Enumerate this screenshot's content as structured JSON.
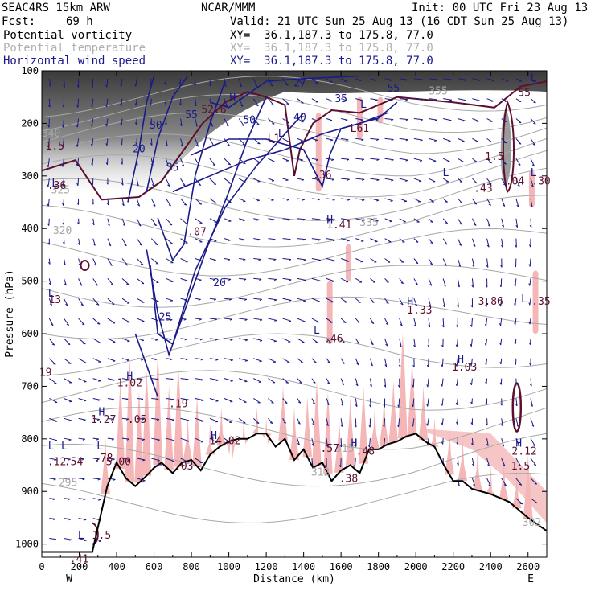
{
  "header": {
    "model": "SEAC4RS 15km ARW",
    "center": "NCAR/MMM",
    "init": "Init: 00 UTC Fri 23 Aug 13",
    "fcst_label": "Fcst:",
    "fcst_value": "69 h",
    "valid": "Valid: 21 UTC Sun 25 Aug 13 (16 CDT Sun 25 Aug 13)",
    "fields": [
      {
        "name": "Potential vorticity",
        "xy": "XY=  36.1,187.3 to 175.8, 77.0",
        "color": "#000000"
      },
      {
        "name": "Potential temperature",
        "xy": "XY=  36.1,187.3 to 175.8, 77.0",
        "color": "#b0b0b0"
      },
      {
        "name": "Horizontal wind speed",
        "xy": "XY=  36.1,187.3 to 175.8, 77.0",
        "color": "#1a1a8c"
      }
    ]
  },
  "chart_data": {
    "type": "cross-section",
    "xlabel": "Distance (km)",
    "ylabel": "Pressure (hPa)",
    "xlim": [
      0,
      2700
    ],
    "ylim": [
      1025,
      100
    ],
    "x_ticks": [
      0,
      200,
      400,
      600,
      800,
      1000,
      1200,
      1400,
      1600,
      1800,
      2000,
      2200,
      2400,
      2600
    ],
    "y_ticks": [
      100,
      200,
      300,
      400,
      500,
      600,
      700,
      800,
      900,
      1000
    ],
    "left_end": "W",
    "right_end": "E",
    "colors": {
      "pv_shade": "#f4b6b6",
      "pv_contour": "#5c0f2e",
      "theta": "#a8a8a8",
      "wind": "#1a1a8c",
      "terrain": "#000000"
    },
    "terrain": [
      [
        0,
        1015
      ],
      [
        270,
        1015
      ],
      [
        350,
        890
      ],
      [
        400,
        845
      ],
      [
        450,
        875
      ],
      [
        500,
        890
      ],
      [
        560,
        870
      ],
      [
        600,
        855
      ],
      [
        640,
        845
      ],
      [
        700,
        865
      ],
      [
        750,
        845
      ],
      [
        800,
        840
      ],
      [
        850,
        860
      ],
      [
        900,
        830
      ],
      [
        950,
        815
      ],
      [
        1000,
        805
      ],
      [
        1050,
        800
      ],
      [
        1100,
        800
      ],
      [
        1150,
        790
      ],
      [
        1200,
        790
      ],
      [
        1250,
        815
      ],
      [
        1300,
        800
      ],
      [
        1350,
        840
      ],
      [
        1400,
        820
      ],
      [
        1450,
        855
      ],
      [
        1500,
        845
      ],
      [
        1550,
        880
      ],
      [
        1600,
        860
      ],
      [
        1650,
        850
      ],
      [
        1700,
        865
      ],
      [
        1750,
        820
      ],
      [
        1800,
        820
      ],
      [
        1850,
        810
      ],
      [
        1900,
        805
      ],
      [
        1950,
        795
      ],
      [
        2000,
        790
      ],
      [
        2050,
        805
      ],
      [
        2100,
        815
      ],
      [
        2150,
        850
      ],
      [
        2200,
        880
      ],
      [
        2250,
        880
      ],
      [
        2300,
        895
      ],
      [
        2400,
        905
      ],
      [
        2500,
        920
      ],
      [
        2600,
        950
      ],
      [
        2700,
        975
      ]
    ],
    "wind_speed_labels": [
      {
        "x": 520,
        "p": 255,
        "text": "20"
      },
      {
        "x": 610,
        "p": 210,
        "text": "30"
      },
      {
        "x": 700,
        "p": 290,
        "text": "35"
      },
      {
        "x": 800,
        "p": 190,
        "text": "55"
      },
      {
        "x": 1110,
        "p": 200,
        "text": "50"
      },
      {
        "x": 1380,
        "p": 195,
        "text": "40"
      },
      {
        "x": 1600,
        "p": 160,
        "text": "35"
      },
      {
        "x": 1380,
        "p": 130,
        "text": "27"
      },
      {
        "x": 950,
        "p": 510,
        "text": "20"
      },
      {
        "x": 660,
        "p": 575,
        "text": "25"
      },
      {
        "x": 1880,
        "p": 140,
        "text": "55"
      }
    ],
    "theta_labels": [
      {
        "x": 50,
        "p": 225,
        "text": "340"
      },
      {
        "x": 100,
        "p": 333,
        "text": "325"
      },
      {
        "x": 110,
        "p": 410,
        "text": "320"
      },
      {
        "x": 1750,
        "p": 395,
        "text": "335"
      },
      {
        "x": 140,
        "p": 890,
        "text": "295"
      },
      {
        "x": 1620,
        "p": 825,
        "text": "315"
      },
      {
        "x": 1490,
        "p": 870,
        "text": "312"
      },
      {
        "x": 2620,
        "p": 965,
        "text": "302"
      },
      {
        "x": 2120,
        "p": 145,
        "text": "355"
      }
    ],
    "pv_labels": [
      {
        "x": 70,
        "p": 250,
        "text": "1.5"
      },
      {
        "x": 1500,
        "p": 305,
        "text": ".36"
      },
      {
        "x": 1590,
        "p": 400,
        "text": "1.41"
      },
      {
        "x": 830,
        "p": 413,
        "text": ".07"
      },
      {
        "x": 920,
        "p": 180,
        "text": "52.6"
      },
      {
        "x": 1240,
        "p": 235,
        "text": "L1"
      },
      {
        "x": 1700,
        "p": 216,
        "text": "L61"
      },
      {
        "x": 2420,
        "p": 270,
        "text": "1.5"
      },
      {
        "x": 2360,
        "p": 330,
        "text": ".43"
      },
      {
        "x": 2530,
        "p": 316,
        "text": ".04"
      },
      {
        "x": 2670,
        "p": 316,
        "text": ".30"
      },
      {
        "x": 2580,
        "p": 148,
        "text": "55"
      },
      {
        "x": 80,
        "p": 325,
        "text": ".36"
      },
      {
        "x": 70,
        "p": 542,
        "text": "13"
      },
      {
        "x": 2020,
        "p": 562,
        "text": "1.33"
      },
      {
        "x": 2400,
        "p": 545,
        "text": "3.86"
      },
      {
        "x": 2670,
        "p": 545,
        "text": ".35"
      },
      {
        "x": 1560,
        "p": 616,
        "text": ".46"
      },
      {
        "x": 2260,
        "p": 670,
        "text": "1.03"
      },
      {
        "x": 470,
        "p": 700,
        "text": "1.02"
      },
      {
        "x": 730,
        "p": 740,
        "text": ".19"
      },
      {
        "x": 330,
        "p": 770,
        "text": "1.27"
      },
      {
        "x": 510,
        "p": 770,
        "text": ".05"
      },
      {
        "x": 980,
        "p": 810,
        "text": "14.02"
      },
      {
        "x": 80,
        "p": 850,
        "text": ".12"
      },
      {
        "x": 170,
        "p": 850,
        "text": ".54"
      },
      {
        "x": 330,
        "p": 843,
        "text": ".78"
      },
      {
        "x": 410,
        "p": 850,
        "text": "5.00"
      },
      {
        "x": 760,
        "p": 858,
        "text": ".03"
      },
      {
        "x": 1540,
        "p": 825,
        "text": ".57"
      },
      {
        "x": 1640,
        "p": 882,
        "text": ".38"
      },
      {
        "x": 1730,
        "p": 830,
        "text": ".48"
      },
      {
        "x": 2580,
        "p": 830,
        "text": "2.12"
      },
      {
        "x": 2560,
        "p": 858,
        "text": "1.5"
      },
      {
        "x": 320,
        "p": 990,
        "text": "1.5"
      },
      {
        "x": 200,
        "p": 1035,
        "text": ".41"
      },
      {
        "x": 20,
        "p": 680,
        "text": "19"
      }
    ],
    "h_markers": [
      [
        1020,
        158
      ],
      [
        1540,
        390
      ],
      [
        1970,
        545
      ],
      [
        2240,
        655
      ],
      [
        470,
        688
      ],
      [
        320,
        755
      ],
      [
        920,
        800
      ],
      [
        1670,
        815
      ],
      [
        2550,
        815
      ]
    ],
    "l_markers": [
      [
        70,
        320
      ],
      [
        50,
        530
      ],
      [
        1470,
        600
      ],
      [
        2580,
        540
      ],
      [
        2630,
        120
      ],
      [
        2630,
        300
      ],
      [
        2160,
        300
      ],
      [
        1720,
        170
      ],
      [
        1280,
        225
      ],
      [
        310,
        820
      ],
      [
        50,
        820
      ],
      [
        120,
        820
      ],
      [
        630,
        850
      ],
      [
        210,
        990
      ]
    ]
  }
}
